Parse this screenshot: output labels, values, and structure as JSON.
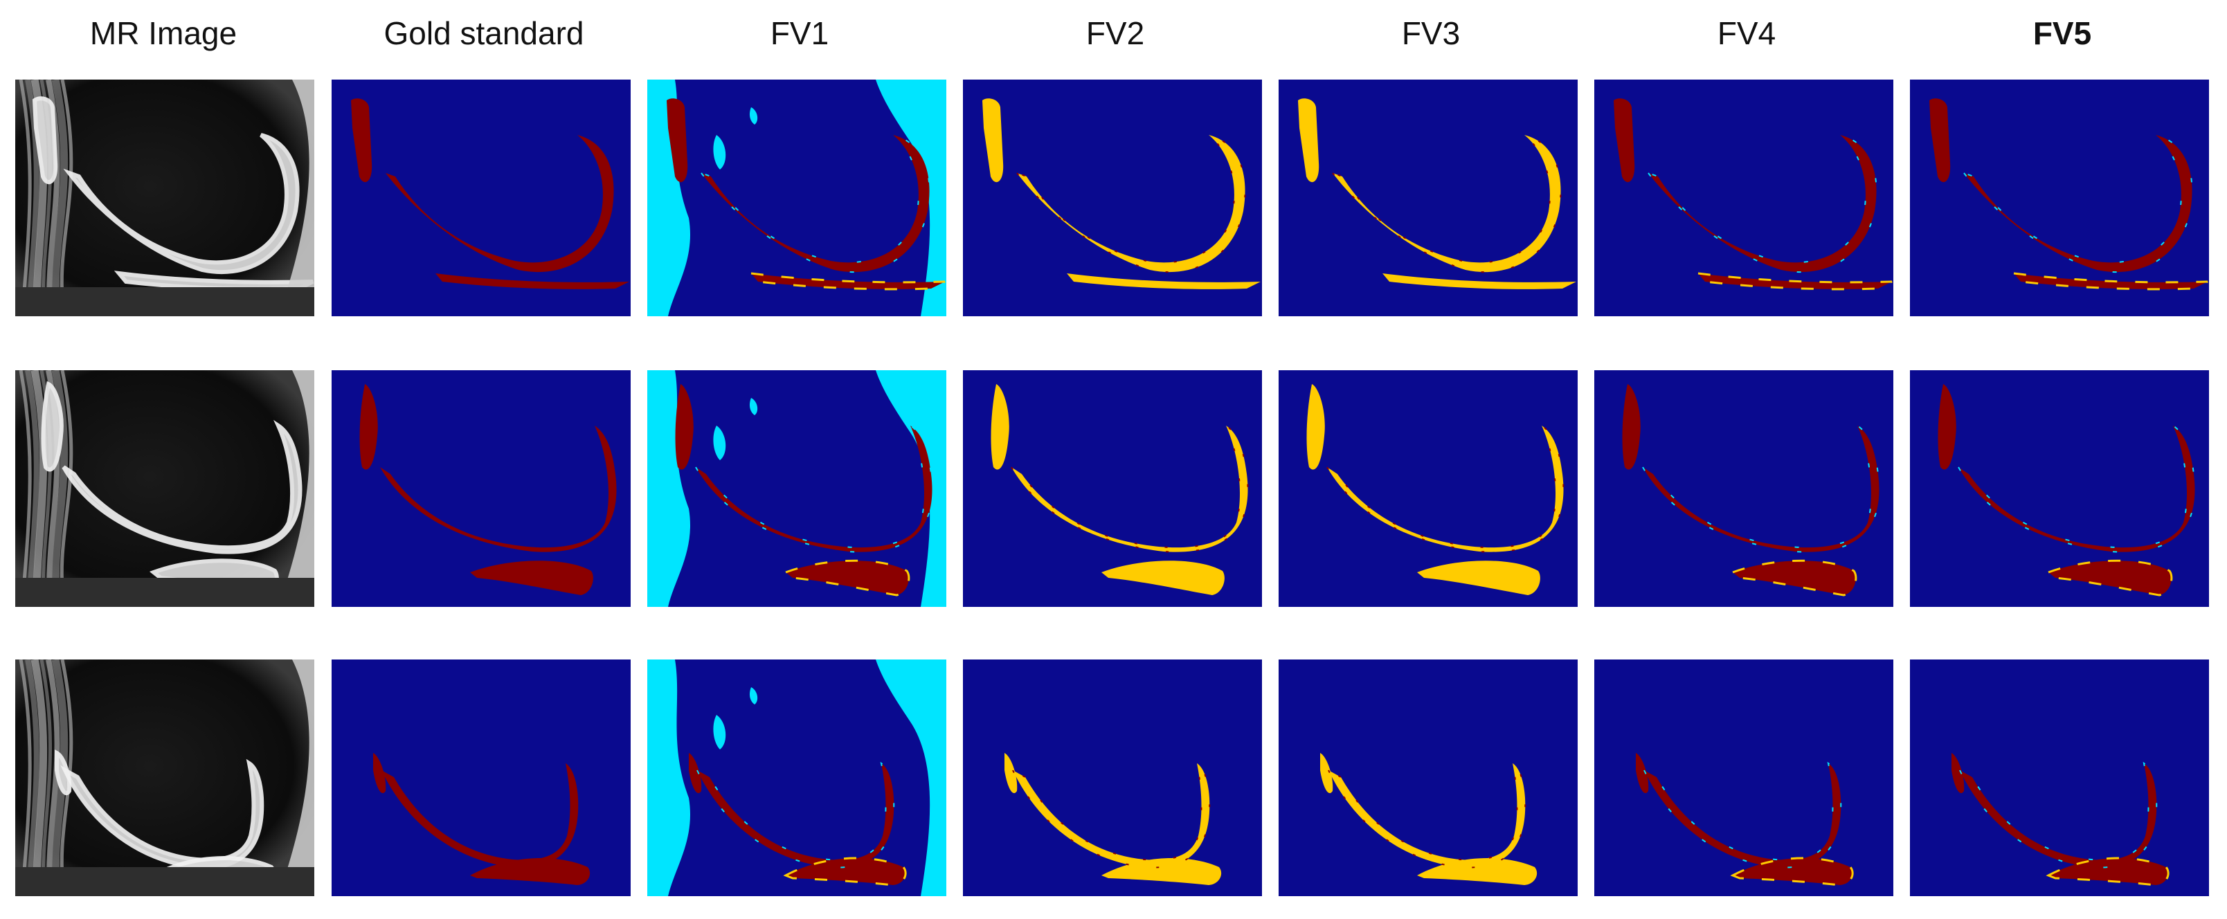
{
  "columns": [
    {
      "label": "MR Image",
      "bold": false
    },
    {
      "label": "Gold standard",
      "bold": false
    },
    {
      "label": "FV1",
      "bold": false
    },
    {
      "label": "FV2",
      "bold": false
    },
    {
      "label": "FV3",
      "bold": false
    },
    {
      "label": "FV4",
      "bold": false
    },
    {
      "label": "FV5",
      "bold": true
    }
  ],
  "rows": 3,
  "colors": {
    "background": "#0a0a8f",
    "cartilage": "#8b0000",
    "false_negative": "#ffcc00",
    "false_positive": "#00e5ff",
    "mri_dark": "#111111",
    "mri_bright": "#dcdcdc"
  }
}
